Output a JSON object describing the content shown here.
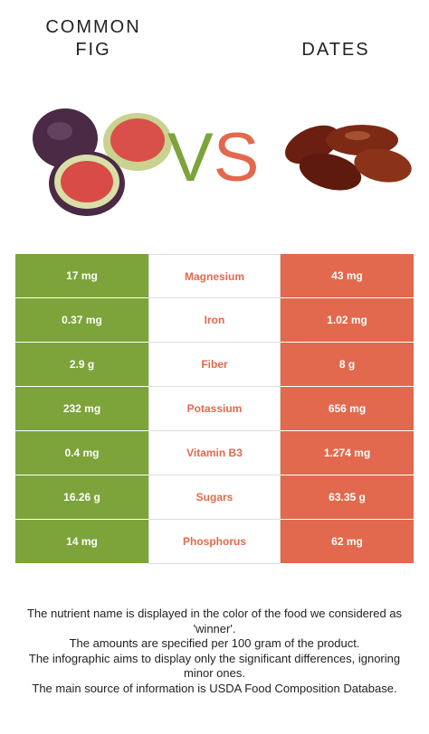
{
  "header": {
    "left_title": "COMMON FIG",
    "right_title": "DATES",
    "vs_v": "V",
    "vs_s": "S",
    "left_color": "#7ca43a",
    "right_color": "#e2694d"
  },
  "table": {
    "rows": [
      {
        "left": "17 mg",
        "nutrient": "Magnesium",
        "right": "43 mg",
        "color": "#e2694d"
      },
      {
        "left": "0.37 mg",
        "nutrient": "Iron",
        "right": "1.02 mg",
        "color": "#e2694d"
      },
      {
        "left": "2.9 g",
        "nutrient": "Fiber",
        "right": "8 g",
        "color": "#e2694d"
      },
      {
        "left": "232 mg",
        "nutrient": "Potassium",
        "right": "656 mg",
        "color": "#e2694d"
      },
      {
        "left": "0.4 mg",
        "nutrient": "Vitamin B3",
        "right": "1.274 mg",
        "color": "#e2694d"
      },
      {
        "left": "16.26 g",
        "nutrient": "Sugars",
        "right": "63.35 g",
        "color": "#e2694d"
      },
      {
        "left": "14 mg",
        "nutrient": "Phosphorus",
        "right": "62 mg",
        "color": "#e2694d"
      }
    ]
  },
  "footer": {
    "notes": [
      "The nutrient name is displayed in the color of the food we considered as 'winner'.",
      "The amounts are specified per 100 gram of the product.",
      "The infographic aims to display only the significant differences, ignoring minor ones.",
      "The main source of information is USDA Food Composition Database."
    ]
  }
}
